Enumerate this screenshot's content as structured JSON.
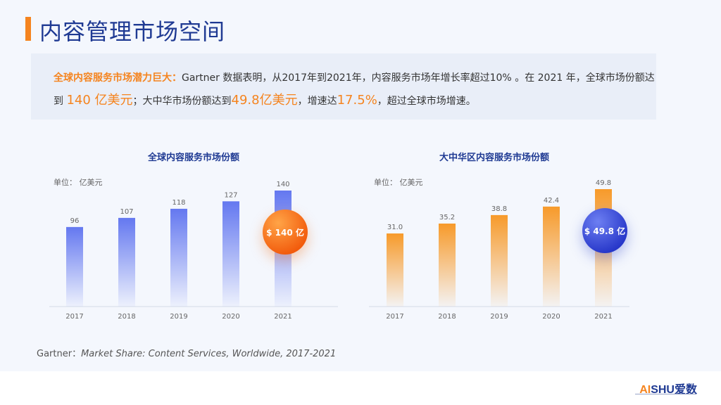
{
  "page": {
    "title": "内容管理市场空间"
  },
  "summary": {
    "lead": "全球内容服务市场潜力巨大：",
    "part1": "Gartner 数据表明，从2017年到2021年，内容服务市场年增长率超过10% 。在 2021 年，全球市场份额达到 ",
    "global_value": "140 亿美元",
    "part2": "；大中华市场份额达到",
    "china_value": "49.8亿美元",
    "part3": "，增速达",
    "growth": "17.5%",
    "part4": "，超过全球市场增速。"
  },
  "colors": {
    "accent_orange": "#f5841f",
    "brand_blue": "#1f3a93",
    "bar_blue": "#6b7ff0",
    "bar_orange": "#f7a43a"
  },
  "chart_data": [
    {
      "type": "bar",
      "title": "全球内容服务市场份额",
      "unit": "单位：  亿美元",
      "categories": [
        "2017",
        "2018",
        "2019",
        "2020",
        "2021"
      ],
      "values": [
        96,
        107,
        118,
        127,
        140
      ],
      "value_labels": [
        "96",
        "107",
        "118",
        "127",
        "140"
      ],
      "ylim": [
        0,
        140
      ],
      "grid": false,
      "highlight": "$ 140 亿"
    },
    {
      "type": "bar",
      "title": "大中华区内容服务市场份额",
      "unit": "单位：  亿美元",
      "categories": [
        "2017",
        "2018",
        "2019",
        "2020",
        "2021"
      ],
      "values": [
        31.0,
        35.2,
        38.8,
        42.4,
        49.8
      ],
      "value_labels": [
        "31.0",
        "35.2",
        "38.8",
        "42.4",
        "49.8"
      ],
      "ylim": [
        0,
        49.8
      ],
      "grid": false,
      "highlight": "$ 49.8 亿"
    }
  ],
  "source": {
    "prefix": "Gartner：",
    "title": "Market Share: Content Services, Worldwide, 2017-2021"
  },
  "logo": {
    "ai": "AI",
    "shu": "SHU爱数"
  }
}
